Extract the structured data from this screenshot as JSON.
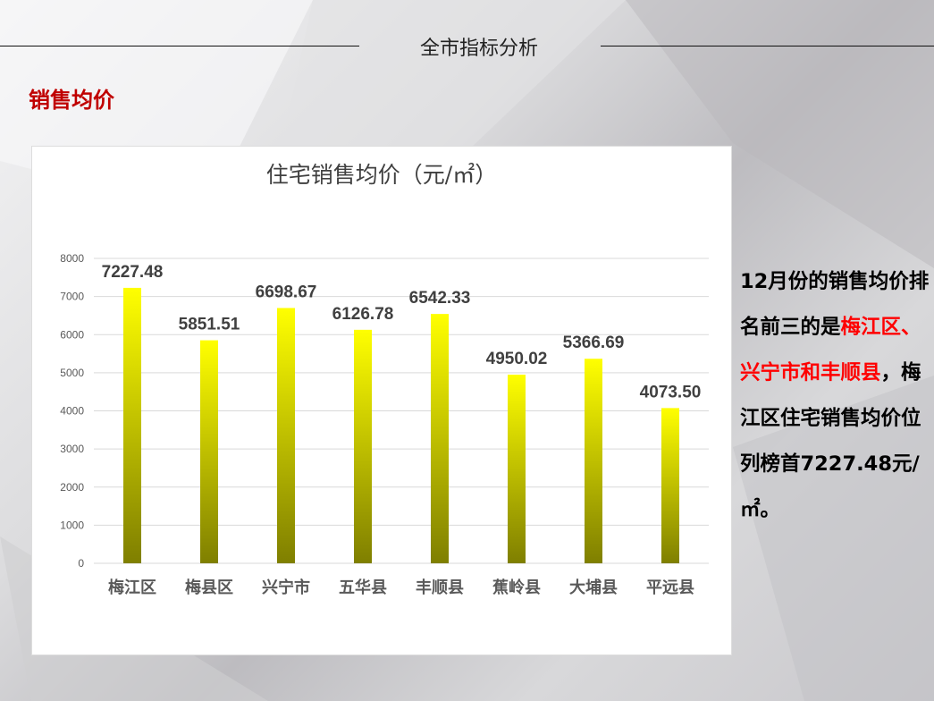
{
  "header": {
    "title": "全市指标分析"
  },
  "section": {
    "title": "销售均价"
  },
  "summary": {
    "part1": "12月份的销售均价排名前三的是",
    "highlight": "梅江区、兴宁市和丰顺县",
    "part2": "，梅江区住宅销售均价位列榜首7227.48元/㎡。"
  },
  "colors": {
    "bar_top": "#ffff00",
    "bar_bottom": "#7f7f00",
    "accent": "#c00000"
  },
  "chart_data": {
    "type": "bar",
    "title": "住宅销售均价（元/㎡）",
    "categories": [
      "梅江区",
      "梅县区",
      "兴宁市",
      "五华县",
      "丰顺县",
      "蕉岭县",
      "大埔县",
      "平远县"
    ],
    "values": [
      7227.48,
      5851.51,
      6698.67,
      6126.78,
      6542.33,
      4950.02,
      5366.69,
      4073.5
    ],
    "data_labels": [
      "7227.48",
      "5851.51",
      "6698.67",
      "6126.78",
      "6542.33",
      "4950.02",
      "5366.69",
      "4073.50"
    ],
    "ylim": [
      0,
      8000
    ],
    "yticks": [
      "0",
      "1000",
      "2000",
      "3000",
      "4000",
      "5000",
      "6000",
      "7000",
      "8000"
    ],
    "grid": true,
    "xlabel": "",
    "ylabel": ""
  }
}
